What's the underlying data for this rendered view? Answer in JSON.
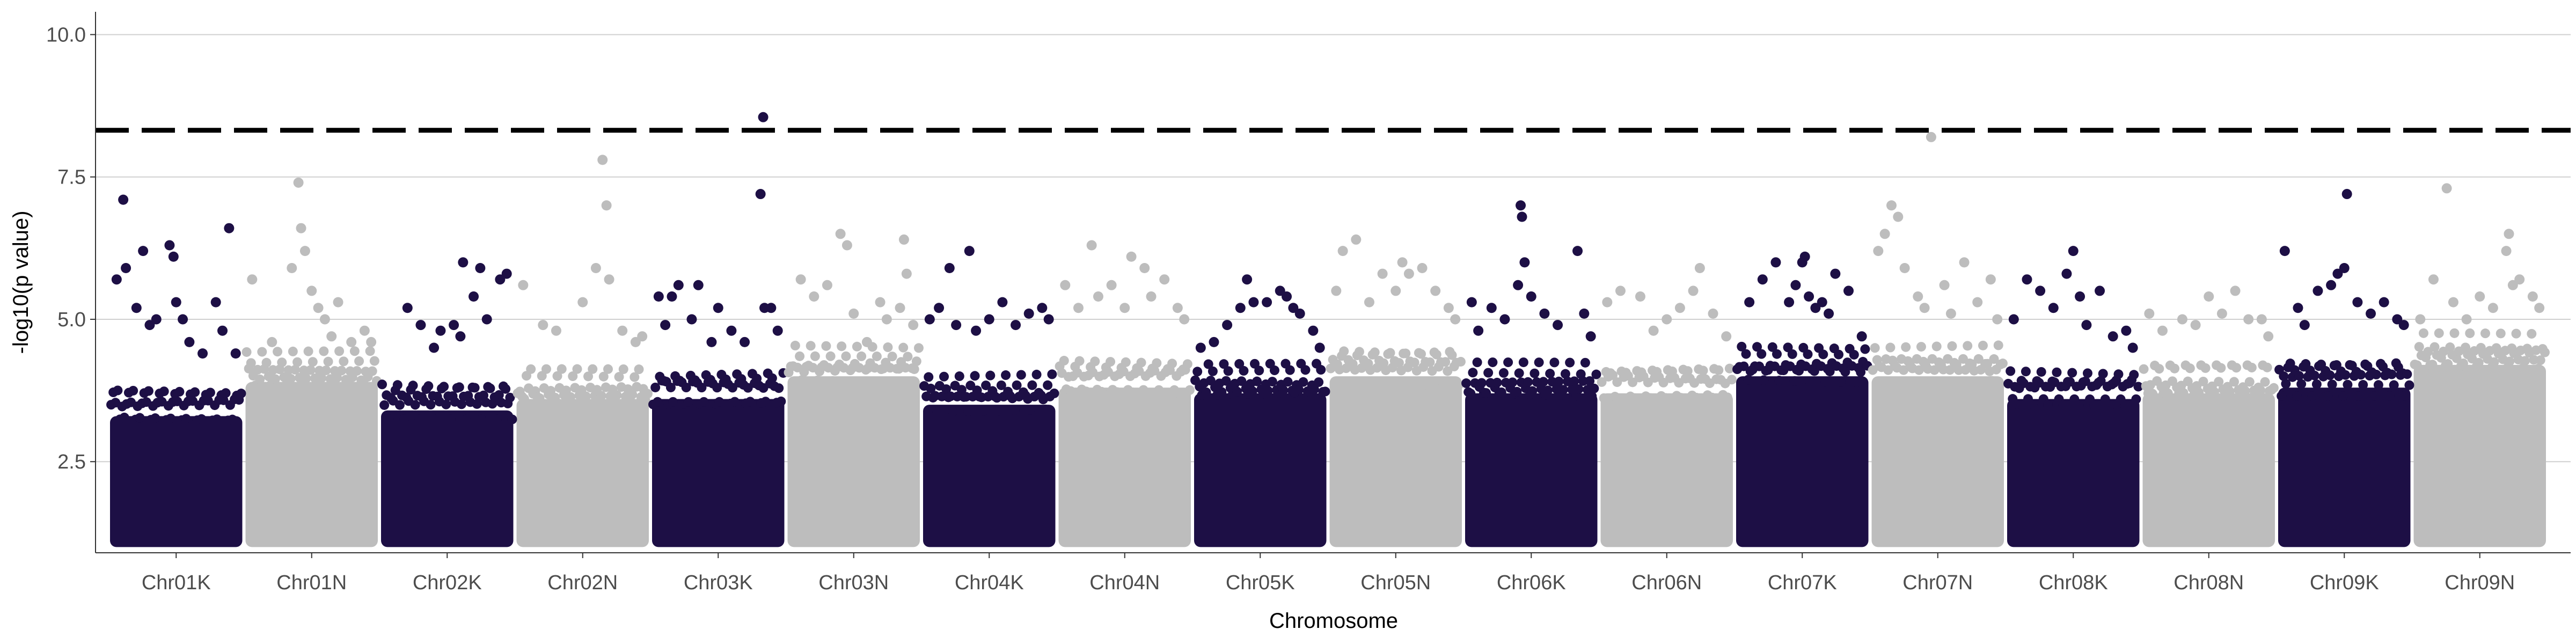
{
  "chart_data": {
    "type": "scatter",
    "title": "",
    "xlabel": "Chromosome",
    "ylabel": "-log10(p value)",
    "ylim": [
      0.9,
      10.4
    ],
    "yticks": [
      2.5,
      5.0,
      7.5,
      10.0
    ],
    "ytick_labels": [
      "2.5",
      "5.0",
      "7.5",
      "10.0"
    ],
    "grid": "horizontal major lines",
    "threshold": {
      "value": 8.32,
      "style": "dashed",
      "color": "#000000"
    },
    "colors": {
      "dark": "#1d0f45",
      "light": "#bdbdbd"
    },
    "dense_floor": 1.0,
    "categories": [
      "Chr01K",
      "Chr01N",
      "Chr02K",
      "Chr02N",
      "Chr03K",
      "Chr03N",
      "Chr04K",
      "Chr04N",
      "Chr05K",
      "Chr05N",
      "Chr06K",
      "Chr06N",
      "Chr07K",
      "Chr07N",
      "Chr08K",
      "Chr08N",
      "Chr09K",
      "Chr09N"
    ],
    "series": [
      {
        "chromosome": "Chr01K",
        "color": "dark",
        "dense_top": 3.3,
        "points": [
          [
            0.05,
            5.7
          ],
          [
            0.12,
            5.9
          ],
          [
            0.1,
            7.1
          ],
          [
            0.2,
            5.2
          ],
          [
            0.25,
            6.2
          ],
          [
            0.3,
            4.9
          ],
          [
            0.35,
            5.0
          ],
          [
            0.45,
            6.3
          ],
          [
            0.48,
            6.1
          ],
          [
            0.5,
            5.3
          ],
          [
            0.55,
            5.0
          ],
          [
            0.6,
            4.6
          ],
          [
            0.7,
            4.4
          ],
          [
            0.8,
            5.3
          ],
          [
            0.85,
            4.8
          ],
          [
            0.9,
            6.6
          ],
          [
            0.95,
            4.4
          ]
        ]
      },
      {
        "chromosome": "Chr01N",
        "color": "light",
        "dense_top": 3.9,
        "points": [
          [
            0.05,
            5.7
          ],
          [
            0.2,
            4.6
          ],
          [
            0.35,
            5.9
          ],
          [
            0.4,
            7.4
          ],
          [
            0.42,
            6.6
          ],
          [
            0.45,
            6.2
          ],
          [
            0.5,
            5.5
          ],
          [
            0.55,
            5.2
          ],
          [
            0.6,
            5.0
          ],
          [
            0.65,
            4.7
          ],
          [
            0.7,
            5.3
          ],
          [
            0.8,
            4.6
          ],
          [
            0.9,
            4.8
          ],
          [
            0.95,
            4.6
          ]
        ]
      },
      {
        "chromosome": "Chr02K",
        "color": "dark",
        "dense_top": 3.4,
        "points": [
          [
            0.2,
            5.2
          ],
          [
            0.3,
            4.9
          ],
          [
            0.4,
            4.5
          ],
          [
            0.45,
            4.8
          ],
          [
            0.55,
            4.9
          ],
          [
            0.6,
            4.7
          ],
          [
            0.62,
            6.0
          ],
          [
            0.7,
            5.4
          ],
          [
            0.75,
            5.9
          ],
          [
            0.8,
            5.0
          ],
          [
            0.9,
            5.7
          ],
          [
            0.95,
            5.8
          ]
        ]
      },
      {
        "chromosome": "Chr02N",
        "color": "light",
        "dense_top": 3.6,
        "points": [
          [
            0.05,
            5.6
          ],
          [
            0.2,
            4.9
          ],
          [
            0.3,
            4.8
          ],
          [
            0.5,
            5.3
          ],
          [
            0.6,
            5.9
          ],
          [
            0.65,
            7.8
          ],
          [
            0.68,
            7.0
          ],
          [
            0.7,
            5.7
          ],
          [
            0.8,
            4.8
          ],
          [
            0.9,
            4.6
          ],
          [
            0.95,
            4.7
          ]
        ]
      },
      {
        "chromosome": "Chr03K",
        "color": "dark",
        "dense_top": 3.6,
        "points": [
          [
            0.05,
            5.4
          ],
          [
            0.1,
            4.9
          ],
          [
            0.15,
            5.4
          ],
          [
            0.2,
            5.6
          ],
          [
            0.3,
            5.0
          ],
          [
            0.35,
            5.6
          ],
          [
            0.45,
            4.6
          ],
          [
            0.5,
            5.2
          ],
          [
            0.6,
            4.8
          ],
          [
            0.7,
            4.6
          ],
          [
            0.82,
            7.2
          ],
          [
            0.85,
            5.2
          ],
          [
            0.9,
            5.2
          ],
          [
            0.95,
            4.8
          ]
        ]
      },
      {
        "chromosome": "Chr03N",
        "color": "light",
        "dense_top": 4.0,
        "points": [
          [
            0.1,
            5.7
          ],
          [
            0.2,
            5.4
          ],
          [
            0.3,
            5.6
          ],
          [
            0.4,
            6.5
          ],
          [
            0.45,
            6.3
          ],
          [
            0.5,
            5.1
          ],
          [
            0.6,
            4.6
          ],
          [
            0.7,
            5.3
          ],
          [
            0.75,
            5.0
          ],
          [
            0.85,
            5.2
          ],
          [
            0.88,
            6.4
          ],
          [
            0.9,
            5.8
          ],
          [
            0.95,
            4.9
          ]
        ]
      },
      {
        "chromosome": "Chr04K",
        "color": "dark",
        "dense_top": 3.5,
        "points": [
          [
            0.05,
            5.0
          ],
          [
            0.12,
            5.2
          ],
          [
            0.2,
            5.9
          ],
          [
            0.25,
            4.9
          ],
          [
            0.35,
            6.2
          ],
          [
            0.4,
            4.8
          ],
          [
            0.5,
            5.0
          ],
          [
            0.6,
            5.3
          ],
          [
            0.7,
            4.9
          ],
          [
            0.8,
            5.1
          ],
          [
            0.9,
            5.2
          ],
          [
            0.95,
            5.0
          ]
        ]
      },
      {
        "chromosome": "Chr04N",
        "color": "light",
        "dense_top": 3.8,
        "points": [
          [
            0.05,
            5.6
          ],
          [
            0.15,
            5.2
          ],
          [
            0.25,
            6.3
          ],
          [
            0.3,
            5.4
          ],
          [
            0.4,
            5.6
          ],
          [
            0.5,
            5.2
          ],
          [
            0.55,
            6.1
          ],
          [
            0.65,
            5.9
          ],
          [
            0.7,
            5.4
          ],
          [
            0.8,
            5.7
          ],
          [
            0.9,
            5.2
          ],
          [
            0.95,
            5.0
          ]
        ]
      },
      {
        "chromosome": "Chr05K",
        "color": "dark",
        "dense_top": 3.7,
        "points": [
          [
            0.05,
            4.5
          ],
          [
            0.15,
            4.6
          ],
          [
            0.25,
            4.9
          ],
          [
            0.35,
            5.2
          ],
          [
            0.4,
            5.7
          ],
          [
            0.45,
            5.3
          ],
          [
            0.55,
            5.3
          ],
          [
            0.65,
            5.5
          ],
          [
            0.7,
            5.4
          ],
          [
            0.75,
            5.2
          ],
          [
            0.8,
            5.1
          ],
          [
            0.9,
            4.8
          ],
          [
            0.95,
            4.5
          ]
        ]
      },
      {
        "chromosome": "Chr05N",
        "color": "light",
        "dense_top": 4.0,
        "points": [
          [
            0.05,
            5.5
          ],
          [
            0.1,
            6.2
          ],
          [
            0.2,
            6.4
          ],
          [
            0.3,
            5.3
          ],
          [
            0.4,
            5.8
          ],
          [
            0.5,
            5.5
          ],
          [
            0.55,
            6.0
          ],
          [
            0.6,
            5.8
          ],
          [
            0.7,
            5.9
          ],
          [
            0.8,
            5.5
          ],
          [
            0.9,
            5.2
          ],
          [
            0.95,
            5.0
          ]
        ]
      },
      {
        "chromosome": "Chr06K",
        "color": "dark",
        "dense_top": 3.7,
        "points": [
          [
            0.05,
            5.3
          ],
          [
            0.1,
            4.8
          ],
          [
            0.2,
            5.2
          ],
          [
            0.3,
            5.0
          ],
          [
            0.4,
            5.6
          ],
          [
            0.42,
            7.0
          ],
          [
            0.43,
            6.8
          ],
          [
            0.45,
            6.0
          ],
          [
            0.5,
            5.4
          ],
          [
            0.6,
            5.1
          ],
          [
            0.7,
            4.9
          ],
          [
            0.85,
            6.2
          ],
          [
            0.9,
            5.1
          ],
          [
            0.95,
            4.7
          ]
        ]
      },
      {
        "chromosome": "Chr06N",
        "color": "light",
        "dense_top": 3.7,
        "points": [
          [
            0.05,
            5.3
          ],
          [
            0.15,
            5.5
          ],
          [
            0.3,
            5.4
          ],
          [
            0.4,
            4.8
          ],
          [
            0.5,
            5.0
          ],
          [
            0.6,
            5.2
          ],
          [
            0.7,
            5.5
          ],
          [
            0.75,
            5.9
          ],
          [
            0.85,
            5.1
          ],
          [
            0.95,
            4.7
          ]
        ]
      },
      {
        "chromosome": "Chr07K",
        "color": "dark",
        "dense_top": 4.0,
        "points": [
          [
            0.1,
            5.3
          ],
          [
            0.2,
            5.7
          ],
          [
            0.3,
            6.0
          ],
          [
            0.4,
            5.3
          ],
          [
            0.45,
            5.6
          ],
          [
            0.5,
            6.0
          ],
          [
            0.52,
            6.1
          ],
          [
            0.55,
            5.4
          ],
          [
            0.6,
            5.2
          ],
          [
            0.65,
            5.3
          ],
          [
            0.7,
            5.1
          ],
          [
            0.75,
            5.8
          ],
          [
            0.85,
            5.5
          ],
          [
            0.95,
            4.7
          ]
        ]
      },
      {
        "chromosome": "Chr07N",
        "color": "light",
        "dense_top": 4.0,
        "points": [
          [
            0.05,
            6.2
          ],
          [
            0.1,
            6.5
          ],
          [
            0.15,
            7.0
          ],
          [
            0.2,
            6.8
          ],
          [
            0.25,
            5.9
          ],
          [
            0.35,
            5.4
          ],
          [
            0.4,
            5.2
          ],
          [
            0.45,
            8.2
          ],
          [
            0.55,
            5.6
          ],
          [
            0.6,
            5.1
          ],
          [
            0.7,
            6.0
          ],
          [
            0.8,
            5.3
          ],
          [
            0.9,
            5.7
          ],
          [
            0.95,
            5.0
          ]
        ]
      },
      {
        "chromosome": "Chr08K",
        "color": "dark",
        "dense_top": 3.6,
        "points": [
          [
            0.05,
            5.0
          ],
          [
            0.15,
            5.7
          ],
          [
            0.25,
            5.5
          ],
          [
            0.35,
            5.2
          ],
          [
            0.45,
            5.8
          ],
          [
            0.5,
            6.2
          ],
          [
            0.55,
            5.4
          ],
          [
            0.6,
            4.9
          ],
          [
            0.7,
            5.5
          ],
          [
            0.8,
            4.7
          ],
          [
            0.9,
            4.8
          ],
          [
            0.95,
            4.5
          ]
        ]
      },
      {
        "chromosome": "Chr08N",
        "color": "light",
        "dense_top": 3.7,
        "points": [
          [
            0.05,
            5.1
          ],
          [
            0.15,
            4.8
          ],
          [
            0.3,
            5.0
          ],
          [
            0.4,
            4.9
          ],
          [
            0.5,
            5.4
          ],
          [
            0.6,
            5.1
          ],
          [
            0.7,
            5.5
          ],
          [
            0.8,
            5.0
          ],
          [
            0.9,
            5.0
          ],
          [
            0.95,
            4.7
          ]
        ]
      },
      {
        "chromosome": "Chr09K",
        "color": "dark",
        "dense_top": 3.8,
        "points": [
          [
            0.05,
            6.2
          ],
          [
            0.15,
            5.2
          ],
          [
            0.2,
            4.9
          ],
          [
            0.3,
            5.5
          ],
          [
            0.4,
            5.6
          ],
          [
            0.45,
            5.8
          ],
          [
            0.5,
            5.9
          ],
          [
            0.52,
            7.2
          ],
          [
            0.6,
            5.3
          ],
          [
            0.7,
            5.1
          ],
          [
            0.8,
            5.3
          ],
          [
            0.9,
            5.0
          ],
          [
            0.95,
            4.9
          ]
        ]
      },
      {
        "chromosome": "Chr09N",
        "color": "light",
        "dense_top": 4.2,
        "points": [
          [
            0.05,
            5.0
          ],
          [
            0.15,
            5.7
          ],
          [
            0.25,
            7.3
          ],
          [
            0.3,
            5.3
          ],
          [
            0.4,
            5.0
          ],
          [
            0.5,
            5.4
          ],
          [
            0.6,
            5.2
          ],
          [
            0.7,
            6.2
          ],
          [
            0.72,
            6.5
          ],
          [
            0.75,
            5.6
          ],
          [
            0.8,
            5.7
          ],
          [
            0.9,
            5.4
          ],
          [
            0.95,
            5.2
          ]
        ]
      }
    ],
    "extra_points": [
      {
        "chromosome": "Chr03K",
        "pos": 0.84,
        "y": 8.55,
        "color": "dark"
      }
    ]
  }
}
